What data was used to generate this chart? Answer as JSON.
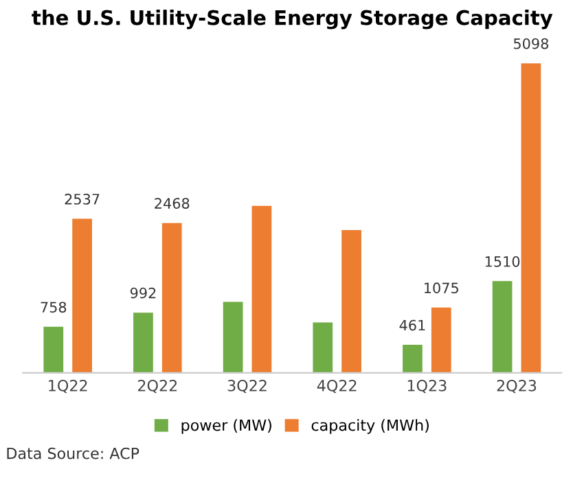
{
  "chart_data": {
    "type": "bar",
    "title": "the U.S. Utility-Scale Energy Storage Capacity",
    "categories": [
      "1Q22",
      "2Q22",
      "3Q22",
      "4Q22",
      "1Q23",
      "2Q23"
    ],
    "series": [
      {
        "name": "power (MW)",
        "color": "#70ad47",
        "values": [
          758,
          992,
          1170,
          830,
          461,
          1510
        ],
        "value_labels": [
          "758",
          "992",
          null,
          null,
          "461",
          "1510"
        ]
      },
      {
        "name": "capacity (MWh)",
        "color": "#ed7d31",
        "values": [
          2537,
          2468,
          2750,
          2350,
          1075,
          5098
        ],
        "value_labels": [
          "2537",
          "2468",
          null,
          null,
          "1075",
          "5098"
        ]
      }
    ],
    "grid": false,
    "legend": "bottom",
    "annotations": [
      "Data Source: ACP"
    ]
  }
}
